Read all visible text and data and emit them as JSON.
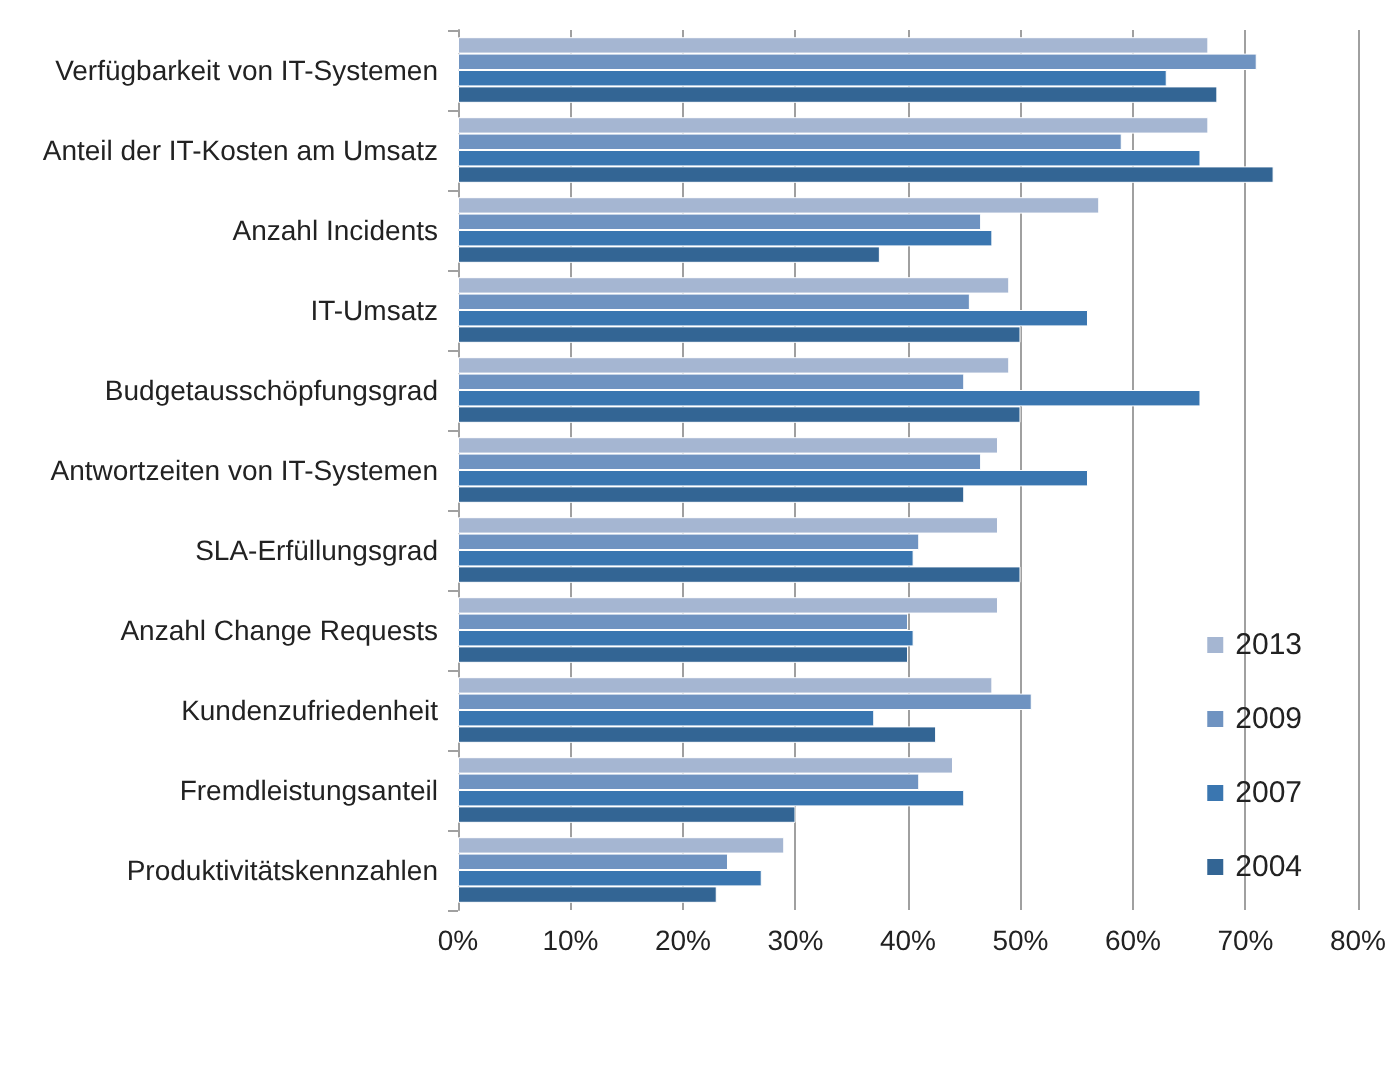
{
  "chart_data": {
    "type": "bar",
    "orientation": "horizontal",
    "categories": [
      "Verfügbarkeit von IT-Systemen",
      "Anteil der IT-Kosten am Umsatz",
      "Anzahl Incidents",
      "IT-Umsatz",
      "Budgetausschöpfungsgrad",
      "Antwortzeiten von IT-Systemen",
      "SLA-Erfüllungsgrad",
      "Anzahl Change Requests",
      "Kundenzufriedenheit",
      "Fremdleistungsanteil",
      "Produktivitätskennzahlen"
    ],
    "series": [
      {
        "name": "2013",
        "color": "#a5b6d2",
        "values": [
          66.7,
          66.7,
          57,
          49,
          49,
          48,
          48,
          48,
          47.5,
          44,
          29
        ]
      },
      {
        "name": "2009",
        "color": "#6f93c1",
        "values": [
          71,
          59,
          46.5,
          45.5,
          45,
          46.5,
          41,
          40,
          51,
          41,
          24
        ]
      },
      {
        "name": "2007",
        "color": "#3a76b0",
        "values": [
          63,
          66,
          47.5,
          56,
          66,
          56,
          40.5,
          40.5,
          37,
          45,
          27
        ]
      },
      {
        "name": "2004",
        "color": "#336594",
        "values": [
          67.5,
          72.5,
          37.5,
          50,
          50,
          45,
          50,
          40,
          42.5,
          30,
          23
        ]
      }
    ],
    "xlim": [
      0,
      80
    ],
    "xticks": [
      {
        "value": 0,
        "label": "0%"
      },
      {
        "value": 10,
        "label": "10%"
      },
      {
        "value": 20,
        "label": "20%"
      },
      {
        "value": 30,
        "label": "30%"
      },
      {
        "value": 40,
        "label": "40%"
      },
      {
        "value": 50,
        "label": "50%"
      },
      {
        "value": 60,
        "label": "60%"
      },
      {
        "value": 70,
        "label": "70%"
      },
      {
        "value": 80,
        "label": "80%"
      }
    ],
    "grid": "x",
    "legend": "right"
  }
}
